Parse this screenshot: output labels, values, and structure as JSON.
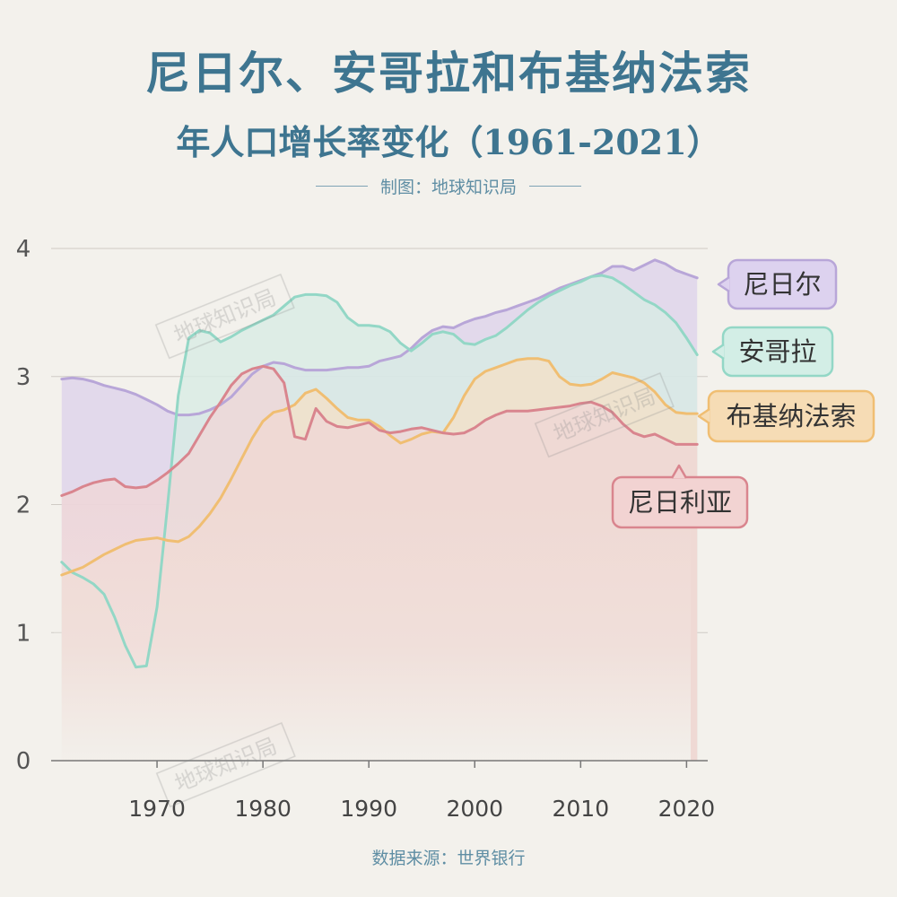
{
  "header": {
    "title": "尼日尔、安哥拉和布基纳法索",
    "subtitle": "年人口增长率变化（1961-2021）",
    "credit": "制图：地球知识局"
  },
  "footer": {
    "source": "数据来源：世界银行"
  },
  "watermarks": [
    "地球知识局",
    "地球知识局",
    "地球知识局"
  ],
  "chart_data": {
    "type": "area",
    "title": "年人口增长率变化（1961-2021）",
    "xlabel": "",
    "ylabel": "",
    "xlim": [
      1960,
      2022
    ],
    "ylim": [
      0,
      4
    ],
    "x_ticks": [
      1970,
      1980,
      1990,
      2000,
      2010,
      2020
    ],
    "y_ticks": [
      0,
      1,
      2,
      3,
      4
    ],
    "grid": true,
    "legend_placement": "right end labels",
    "series": [
      {
        "name": "尼日尔",
        "color": "#b8a6d8",
        "label_bg": "#ddd2ef",
        "points": [
          [
            1961,
            2.98
          ],
          [
            1962,
            2.99
          ],
          [
            1963,
            2.98
          ],
          [
            1964,
            2.96
          ],
          [
            1965,
            2.93
          ],
          [
            1966,
            2.91
          ],
          [
            1967,
            2.89
          ],
          [
            1968,
            2.86
          ],
          [
            1969,
            2.82
          ],
          [
            1970,
            2.78
          ],
          [
            1971,
            2.73
          ],
          [
            1972,
            2.7
          ],
          [
            1973,
            2.7
          ],
          [
            1974,
            2.71
          ],
          [
            1975,
            2.74
          ],
          [
            1976,
            2.78
          ],
          [
            1977,
            2.84
          ],
          [
            1978,
            2.93
          ],
          [
            1979,
            3.02
          ],
          [
            1980,
            3.08
          ],
          [
            1981,
            3.11
          ],
          [
            1982,
            3.1
          ],
          [
            1983,
            3.07
          ],
          [
            1984,
            3.05
          ],
          [
            1985,
            3.05
          ],
          [
            1986,
            3.05
          ],
          [
            1987,
            3.06
          ],
          [
            1988,
            3.07
          ],
          [
            1989,
            3.07
          ],
          [
            1990,
            3.08
          ],
          [
            1991,
            3.12
          ],
          [
            1992,
            3.14
          ],
          [
            1993,
            3.16
          ],
          [
            1994,
            3.22
          ],
          [
            1995,
            3.3
          ],
          [
            1996,
            3.36
          ],
          [
            1997,
            3.39
          ],
          [
            1998,
            3.38
          ],
          [
            1999,
            3.42
          ],
          [
            2000,
            3.45
          ],
          [
            2001,
            3.47
          ],
          [
            2002,
            3.5
          ],
          [
            2003,
            3.52
          ],
          [
            2004,
            3.55
          ],
          [
            2005,
            3.58
          ],
          [
            2006,
            3.61
          ],
          [
            2007,
            3.65
          ],
          [
            2008,
            3.69
          ],
          [
            2009,
            3.72
          ],
          [
            2010,
            3.75
          ],
          [
            2011,
            3.78
          ],
          [
            2012,
            3.81
          ],
          [
            2013,
            3.86
          ],
          [
            2014,
            3.86
          ],
          [
            2015,
            3.83
          ],
          [
            2016,
            3.87
          ],
          [
            2017,
            3.91
          ],
          [
            2018,
            3.88
          ],
          [
            2019,
            3.83
          ],
          [
            2020,
            3.8
          ],
          [
            2021,
            3.77
          ]
        ]
      },
      {
        "name": "安哥拉",
        "color": "#93d7c6",
        "label_bg": "#d3eee6",
        "points": [
          [
            1961,
            1.55
          ],
          [
            1962,
            1.47
          ],
          [
            1963,
            1.43
          ],
          [
            1964,
            1.38
          ],
          [
            1965,
            1.3
          ],
          [
            1966,
            1.12
          ],
          [
            1967,
            0.9
          ],
          [
            1968,
            0.73
          ],
          [
            1969,
            0.74
          ],
          [
            1970,
            1.2
          ],
          [
            1971,
            2.0
          ],
          [
            1972,
            2.85
          ],
          [
            1973,
            3.3
          ],
          [
            1974,
            3.36
          ],
          [
            1975,
            3.34
          ],
          [
            1976,
            3.27
          ],
          [
            1977,
            3.31
          ],
          [
            1978,
            3.36
          ],
          [
            1979,
            3.4
          ],
          [
            1980,
            3.44
          ],
          [
            1981,
            3.48
          ],
          [
            1982,
            3.55
          ],
          [
            1983,
            3.62
          ],
          [
            1984,
            3.64
          ],
          [
            1985,
            3.64
          ],
          [
            1986,
            3.63
          ],
          [
            1987,
            3.58
          ],
          [
            1988,
            3.46
          ],
          [
            1989,
            3.4
          ],
          [
            1990,
            3.4
          ],
          [
            1991,
            3.39
          ],
          [
            1992,
            3.35
          ],
          [
            1993,
            3.26
          ],
          [
            1994,
            3.2
          ],
          [
            1995,
            3.26
          ],
          [
            1996,
            3.33
          ],
          [
            1997,
            3.35
          ],
          [
            1998,
            3.33
          ],
          [
            1999,
            3.26
          ],
          [
            2000,
            3.25
          ],
          [
            2001,
            3.29
          ],
          [
            2002,
            3.32
          ],
          [
            2003,
            3.38
          ],
          [
            2004,
            3.45
          ],
          [
            2005,
            3.52
          ],
          [
            2006,
            3.58
          ],
          [
            2007,
            3.63
          ],
          [
            2008,
            3.67
          ],
          [
            2009,
            3.71
          ],
          [
            2010,
            3.74
          ],
          [
            2011,
            3.78
          ],
          [
            2012,
            3.79
          ],
          [
            2013,
            3.77
          ],
          [
            2014,
            3.72
          ],
          [
            2015,
            3.66
          ],
          [
            2016,
            3.6
          ],
          [
            2017,
            3.56
          ],
          [
            2018,
            3.5
          ],
          [
            2019,
            3.42
          ],
          [
            2020,
            3.3
          ],
          [
            2021,
            3.17
          ]
        ]
      },
      {
        "name": "布基纳法索",
        "color": "#f0be72",
        "label_bg": "#f6dcb5",
        "points": [
          [
            1961,
            1.45
          ],
          [
            1962,
            1.48
          ],
          [
            1963,
            1.51
          ],
          [
            1964,
            1.56
          ],
          [
            1965,
            1.61
          ],
          [
            1966,
            1.65
          ],
          [
            1967,
            1.69
          ],
          [
            1968,
            1.72
          ],
          [
            1969,
            1.73
          ],
          [
            1970,
            1.74
          ],
          [
            1971,
            1.72
          ],
          [
            1972,
            1.71
          ],
          [
            1973,
            1.75
          ],
          [
            1974,
            1.83
          ],
          [
            1975,
            1.93
          ],
          [
            1976,
            2.05
          ],
          [
            1977,
            2.2
          ],
          [
            1978,
            2.36
          ],
          [
            1979,
            2.52
          ],
          [
            1980,
            2.65
          ],
          [
            1981,
            2.72
          ],
          [
            1982,
            2.74
          ],
          [
            1983,
            2.78
          ],
          [
            1984,
            2.87
          ],
          [
            1985,
            2.9
          ],
          [
            1986,
            2.83
          ],
          [
            1987,
            2.75
          ],
          [
            1988,
            2.68
          ],
          [
            1989,
            2.66
          ],
          [
            1990,
            2.66
          ],
          [
            1991,
            2.61
          ],
          [
            1992,
            2.54
          ],
          [
            1993,
            2.48
          ],
          [
            1994,
            2.51
          ],
          [
            1995,
            2.55
          ],
          [
            1996,
            2.57
          ],
          [
            1997,
            2.56
          ],
          [
            1998,
            2.68
          ],
          [
            1999,
            2.85
          ],
          [
            2000,
            2.98
          ],
          [
            2001,
            3.04
          ],
          [
            2002,
            3.07
          ],
          [
            2003,
            3.1
          ],
          [
            2004,
            3.13
          ],
          [
            2005,
            3.14
          ],
          [
            2006,
            3.14
          ],
          [
            2007,
            3.12
          ],
          [
            2008,
            3.0
          ],
          [
            2009,
            2.94
          ],
          [
            2010,
            2.93
          ],
          [
            2011,
            2.94
          ],
          [
            2012,
            2.98
          ],
          [
            2013,
            3.03
          ],
          [
            2014,
            3.01
          ],
          [
            2015,
            2.99
          ],
          [
            2016,
            2.95
          ],
          [
            2017,
            2.88
          ],
          [
            2018,
            2.78
          ],
          [
            2019,
            2.72
          ],
          [
            2020,
            2.71
          ],
          [
            2021,
            2.71
          ]
        ]
      },
      {
        "name": "尼日利亚",
        "color": "#d9858e",
        "label_bg": "#f2d3d2",
        "points": [
          [
            1961,
            2.07
          ],
          [
            1962,
            2.1
          ],
          [
            1963,
            2.14
          ],
          [
            1964,
            2.17
          ],
          [
            1965,
            2.19
          ],
          [
            1966,
            2.2
          ],
          [
            1967,
            2.14
          ],
          [
            1968,
            2.13
          ],
          [
            1969,
            2.14
          ],
          [
            1970,
            2.19
          ],
          [
            1971,
            2.25
          ],
          [
            1972,
            2.32
          ],
          [
            1973,
            2.4
          ],
          [
            1974,
            2.54
          ],
          [
            1975,
            2.68
          ],
          [
            1976,
            2.8
          ],
          [
            1977,
            2.93
          ],
          [
            1978,
            3.02
          ],
          [
            1979,
            3.06
          ],
          [
            1980,
            3.08
          ],
          [
            1981,
            3.06
          ],
          [
            1982,
            2.95
          ],
          [
            1983,
            2.53
          ],
          [
            1984,
            2.51
          ],
          [
            1985,
            2.75
          ],
          [
            1986,
            2.65
          ],
          [
            1987,
            2.61
          ],
          [
            1988,
            2.6
          ],
          [
            1989,
            2.62
          ],
          [
            1990,
            2.64
          ],
          [
            1991,
            2.58
          ],
          [
            1992,
            2.56
          ],
          [
            1993,
            2.57
          ],
          [
            1994,
            2.59
          ],
          [
            1995,
            2.6
          ],
          [
            1996,
            2.58
          ],
          [
            1997,
            2.56
          ],
          [
            1998,
            2.55
          ],
          [
            1999,
            2.56
          ],
          [
            2000,
            2.6
          ],
          [
            2001,
            2.66
          ],
          [
            2002,
            2.7
          ],
          [
            2003,
            2.73
          ],
          [
            2004,
            2.73
          ],
          [
            2005,
            2.73
          ],
          [
            2006,
            2.74
          ],
          [
            2007,
            2.75
          ],
          [
            2008,
            2.76
          ],
          [
            2009,
            2.77
          ],
          [
            2010,
            2.79
          ],
          [
            2011,
            2.8
          ],
          [
            2012,
            2.77
          ],
          [
            2013,
            2.72
          ],
          [
            2014,
            2.63
          ],
          [
            2015,
            2.56
          ],
          [
            2016,
            2.53
          ],
          [
            2017,
            2.55
          ],
          [
            2018,
            2.51
          ],
          [
            2019,
            2.47
          ],
          [
            2020,
            2.47
          ],
          [
            2021,
            2.47
          ]
        ]
      }
    ]
  }
}
